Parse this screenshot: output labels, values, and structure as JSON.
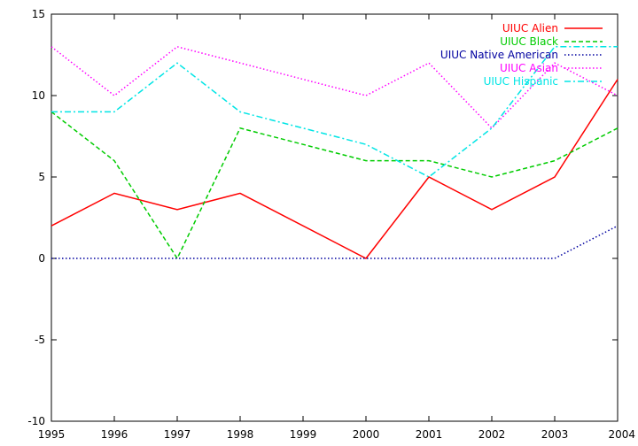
{
  "chart_data": {
    "type": "line",
    "x": [
      1995,
      1996,
      1997,
      1998,
      1999,
      2000,
      2001,
      2002,
      2003,
      2004
    ],
    "xlim": [
      1995,
      2004
    ],
    "ylim": [
      -10,
      15
    ],
    "xticks": [
      1995,
      1996,
      1997,
      1998,
      1999,
      2000,
      2001,
      2002,
      2003,
      2004
    ],
    "yticks": [
      -10,
      -5,
      0,
      5,
      10,
      15
    ],
    "grid": false,
    "legend_position": "top-right",
    "series": [
      {
        "name": "UIUC Alien",
        "color": "#ff0000",
        "dash": "solid",
        "values": [
          2,
          4,
          3,
          4,
          null,
          0,
          5,
          3,
          5,
          11
        ]
      },
      {
        "name": "UIUC Black",
        "color": "#00cc00",
        "dash": "dashed",
        "values": [
          9,
          6,
          0,
          8,
          null,
          6,
          6,
          5,
          6,
          8
        ]
      },
      {
        "name": "UIUC Native American",
        "color": "#0000a0",
        "dash": "dotted",
        "values": [
          0,
          0,
          0,
          0,
          null,
          0,
          0,
          0,
          0,
          2
        ]
      },
      {
        "name": "UIUC Asian",
        "color": "#ff00ff",
        "dash": "dotted",
        "values": [
          13,
          10,
          13,
          12,
          null,
          10,
          12,
          8,
          12,
          10
        ]
      },
      {
        "name": "UIUC Hispanic",
        "color": "#00e5e5",
        "dash": "dashdot",
        "values": [
          9,
          9,
          12,
          9,
          null,
          7,
          5,
          8,
          13,
          13
        ]
      }
    ]
  }
}
